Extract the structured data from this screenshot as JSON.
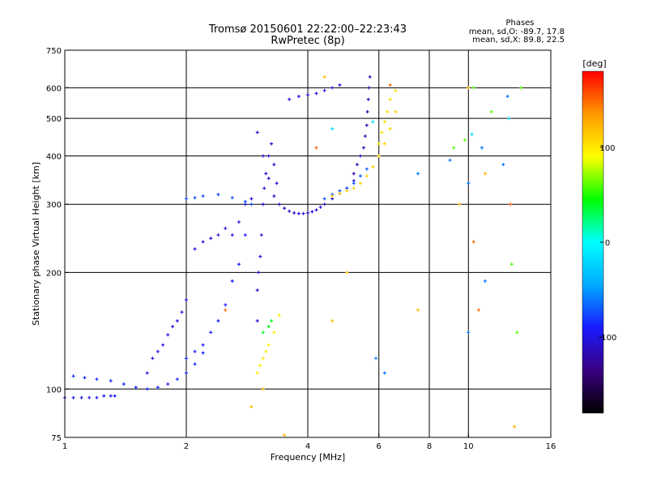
{
  "chart_data": {
    "type": "scatter",
    "title": "Tromsø 20150601 22:22:00–22:23:43",
    "subtitle": "RwPretec (8p)",
    "xlabel": "Frequency [MHz]",
    "ylabel": "Stationary phase Virtual Height [km]",
    "x_scale": "log",
    "y_scale": "log",
    "xlim": [
      1,
      16
    ],
    "ylim": [
      75,
      750
    ],
    "x_ticks": [
      1,
      2,
      4,
      6,
      8,
      10,
      16
    ],
    "x_tick_labels": [
      "1",
      "2",
      "4",
      "6",
      "8",
      "10",
      "16"
    ],
    "y_ticks": [
      75,
      100,
      200,
      300,
      400,
      500,
      600,
      750
    ],
    "y_tick_labels": [
      "75",
      "100",
      "200",
      "300",
      "400",
      "500",
      "600",
      "750"
    ],
    "grid": true,
    "phase_stats": {
      "heading": "Phases",
      "line_o": "mean, sd,O: -89.7, 17.8",
      "line_x": "mean, sd,X:  89.8, 22.5"
    },
    "colorbar": {
      "label": "[deg]",
      "range": [
        -180,
        180
      ],
      "ticks": [
        100,
        0,
        -100
      ],
      "tick_labels": [
        "100",
        "0",
        "-100"
      ],
      "colormap": [
        "#000000",
        "#3a0080",
        "#1a1aff",
        "#00aaff",
        "#00ffff",
        "#00ff00",
        "#ffff00",
        "#ff9900",
        "#ff0000"
      ]
    },
    "series": [
      {
        "value_deg": -95,
        "x": [
          1.0,
          1.05,
          1.1,
          1.15,
          1.2,
          1.25,
          1.3,
          1.33
        ],
        "y": [
          95,
          95,
          95,
          95,
          95,
          96,
          96,
          96
        ]
      },
      {
        "value_deg": -85,
        "x": [
          1.05,
          1.12,
          1.2,
          1.3,
          1.4,
          1.5,
          1.6,
          1.7,
          1.8,
          1.9,
          2.0,
          2.1,
          2.2
        ],
        "y": [
          108,
          107,
          106,
          105,
          103,
          101,
          100,
          101,
          103,
          106,
          110,
          116,
          124
        ]
      },
      {
        "value_deg": -100,
        "x": [
          1.6,
          1.65,
          1.7,
          1.75,
          1.8,
          1.85,
          1.9,
          1.95,
          2.0,
          2.1,
          2.2,
          2.3,
          2.4,
          2.5,
          2.6,
          2.7,
          2.8,
          2.9
        ],
        "y": [
          110,
          120,
          125,
          130,
          138,
          145,
          150,
          158,
          170,
          230,
          240,
          245,
          250,
          260,
          250,
          270,
          300,
          310
        ]
      },
      {
        "value_deg": -90,
        "x": [
          2.0,
          2.1,
          2.2,
          2.3,
          2.4,
          2.5,
          2.6,
          2.7,
          2.8
        ],
        "y": [
          120,
          125,
          130,
          140,
          150,
          165,
          190,
          210,
          250
        ]
      },
      {
        "value_deg": -75,
        "x": [
          2.0,
          2.1,
          2.2,
          2.4,
          2.6,
          2.8,
          2.9
        ],
        "y": [
          310,
          312,
          315,
          318,
          312,
          305,
          300
        ]
      },
      {
        "value_deg": -105,
        "x": [
          3.0,
          3.0,
          3.02,
          3.05,
          3.07,
          3.1,
          3.12,
          3.15,
          3.2,
          3.25,
          3.3,
          3.35
        ],
        "y": [
          150,
          180,
          200,
          220,
          250,
          300,
          330,
          360,
          400,
          430,
          380,
          340
        ]
      },
      {
        "value_deg": -110,
        "x": [
          3.0,
          3.1,
          3.2,
          3.3,
          3.4,
          3.5,
          3.6,
          3.7,
          3.8,
          3.9,
          4.0,
          4.1,
          4.2,
          4.3,
          4.4,
          4.6,
          4.8,
          5.0,
          5.2
        ],
        "y": [
          460,
          400,
          350,
          315,
          300,
          293,
          288,
          285,
          284,
          284,
          285,
          287,
          290,
          295,
          300,
          310,
          320,
          330,
          345
        ]
      },
      {
        "value_deg": -115,
        "x": [
          5.2,
          5.3,
          5.4,
          5.5,
          5.55,
          5.6,
          5.62,
          5.65,
          5.67,
          5.7
        ],
        "y": [
          360,
          380,
          400,
          420,
          450,
          480,
          520,
          560,
          600,
          640
        ]
      },
      {
        "value_deg": -100,
        "x": [
          3.6,
          3.8,
          4.0,
          4.2,
          4.4,
          4.6,
          4.8
        ],
        "y": [
          560,
          570,
          575,
          580,
          590,
          600,
          610
        ]
      },
      {
        "value_deg": -70,
        "x": [
          4.4,
          4.6,
          4.8,
          5.0,
          5.2,
          5.4,
          5.6
        ],
        "y": [
          310,
          318,
          325,
          330,
          340,
          355,
          370
        ]
      },
      {
        "value_deg": 110,
        "x": [
          4.6,
          4.8,
          5.0,
          5.2,
          5.4,
          5.6,
          5.8,
          6.0,
          6.2,
          6.4,
          6.6
        ],
        "y": [
          315,
          320,
          325,
          330,
          340,
          355,
          375,
          400,
          430,
          470,
          520
        ]
      },
      {
        "value_deg": 105,
        "x": [
          6.0,
          6.1,
          6.2,
          6.3,
          6.4,
          6.6
        ],
        "y": [
          430,
          460,
          490,
          520,
          560,
          590
        ]
      },
      {
        "value_deg": 100,
        "x": [
          3.0,
          3.05,
          3.1,
          3.15,
          3.2,
          3.3,
          3.4
        ],
        "y": [
          110,
          115,
          120,
          125,
          130,
          140,
          155
        ]
      },
      {
        "value_deg": 40,
        "x": [
          3.1,
          3.2,
          3.25
        ],
        "y": [
          140,
          145,
          150
        ]
      },
      {
        "value_deg": 120,
        "x": [
          2.9,
          3.1,
          3.5,
          4.4,
          4.6,
          5.0,
          7.5,
          9.5,
          10.0,
          11.0,
          13.0
        ],
        "y": [
          90,
          100,
          76,
          640,
          150,
          200,
          160,
          300,
          600,
          360,
          80
        ]
      },
      {
        "value_deg": -60,
        "x": [
          5.9,
          6.2,
          7.5,
          9.0,
          10.0,
          10.0,
          10.8,
          11.0,
          12.2,
          12.5
        ],
        "y": [
          120,
          110,
          360,
          390,
          340,
          140,
          420,
          190,
          380,
          570
        ]
      },
      {
        "value_deg": 60,
        "x": [
          9.2,
          9.8,
          10.3,
          11.4,
          12.8,
          13.2,
          13.5
        ],
        "y": [
          420,
          440,
          600,
          520,
          210,
          140,
          600
        ]
      },
      {
        "value_deg": -20,
        "x": [
          4.6,
          5.8,
          10.2,
          12.6
        ],
        "y": [
          470,
          490,
          455,
          500
        ]
      },
      {
        "value_deg": 150,
        "x": [
          2.5,
          4.2,
          6.4,
          10.3,
          10.6,
          12.7
        ],
        "y": [
          160,
          420,
          610,
          240,
          160,
          300
        ]
      }
    ]
  }
}
